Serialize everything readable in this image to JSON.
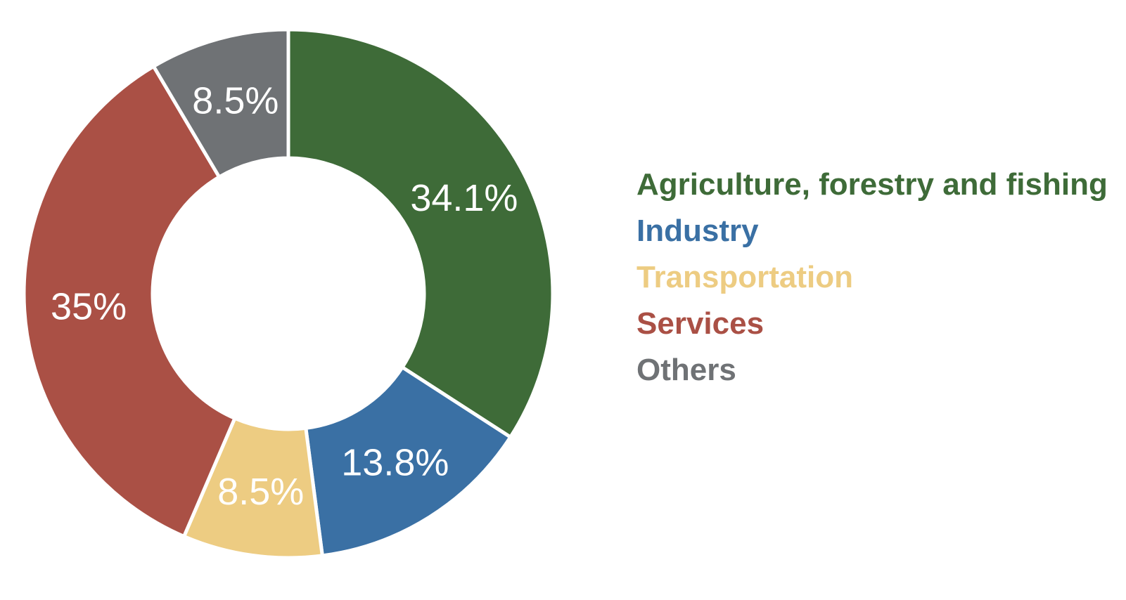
{
  "chart_data": {
    "type": "pie",
    "donut": true,
    "title": "",
    "slices": [
      {
        "label": "Agriculture, forestry and fishing",
        "value": 34.1,
        "display": "34.1%",
        "color": "#3e6b38"
      },
      {
        "label": "Industry",
        "value": 13.8,
        "display": "13.8%",
        "color": "#3a70a4"
      },
      {
        "label": "Transportation",
        "value": 8.5,
        "display": "8.5%",
        "color": "#edcc82"
      },
      {
        "label": "Services",
        "value": 35.0,
        "display": "35%",
        "color": "#aa5045"
      },
      {
        "label": "Others",
        "value": 8.5,
        "display": "8.5%",
        "color": "#6f7275"
      }
    ],
    "legend_placement": "right"
  }
}
